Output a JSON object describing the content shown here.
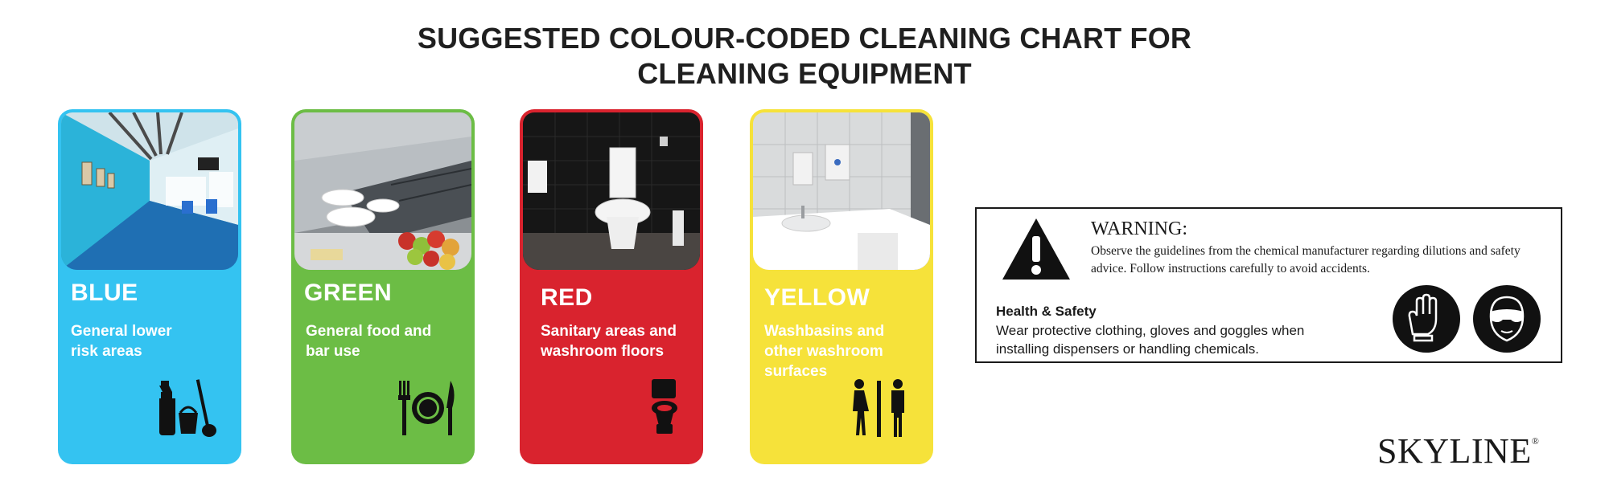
{
  "title": {
    "line1": "SUGGESTED COLOUR-CODED CLEANING CHART FOR",
    "line2": "CLEANING EQUIPMENT"
  },
  "cards": [
    {
      "name": "BLUE",
      "desc": "General lower risk areas",
      "color": "#34c3f1",
      "photo": "corridor",
      "icon": "cleaning-supplies-icon"
    },
    {
      "name": "GREEN",
      "desc": "General food and bar use",
      "color": "#6cbd45",
      "photo": "kitchen",
      "icon": "fork-plate-knife-icon"
    },
    {
      "name": "RED",
      "desc": "Sanitary areas and washroom floors",
      "color": "#d9232e",
      "photo": "toilet",
      "icon": "toilet-icon"
    },
    {
      "name": "YELLOW",
      "desc": "Washbasins and other washroom surfaces",
      "color": "#f6e23a",
      "photo": "washbasin",
      "icon": "restroom-icon"
    }
  ],
  "warning": {
    "title": "WARNING:",
    "text": "Observe the guidelines from the chemical  manufacturer regarding dilutions and safety advice.  Follow instructions carefully to avoid accidents.",
    "icon": "warning-triangle-icon"
  },
  "health_safety": {
    "title": "Health & Safety",
    "text": "Wear protective clothing, gloves and goggles when installing dispensers or handling chemicals.",
    "icons": [
      "gloves-icon",
      "goggles-icon"
    ]
  },
  "brand": {
    "name": "SKYLINE",
    "mark": "®"
  }
}
